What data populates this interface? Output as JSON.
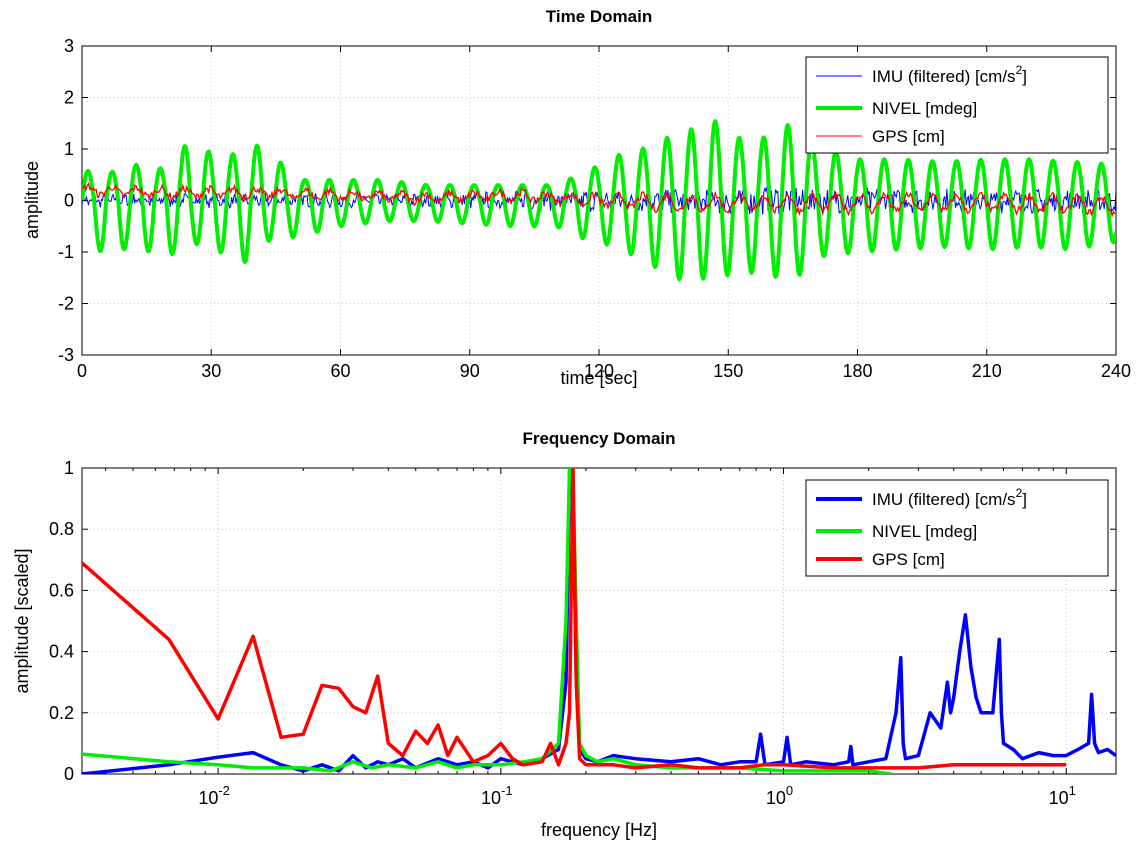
{
  "chart_data": [
    {
      "type": "line",
      "title": "Time Domain",
      "xlabel": "time [sec]",
      "ylabel": "amplitude",
      "xlim": [
        0,
        240
      ],
      "ylim": [
        -3,
        3
      ],
      "xticks": [
        0,
        30,
        60,
        90,
        120,
        150,
        180,
        210,
        240
      ],
      "yticks": [
        -3,
        -2,
        -1,
        0,
        1,
        2,
        3
      ],
      "grid": true,
      "legend_position": "top-right",
      "series": [
        {
          "name": "IMU (filtered) [cm/s2]",
          "color": "#0000ff",
          "style": "thin",
          "x": [
            0,
            30,
            60,
            90,
            100,
            110,
            120,
            130,
            140,
            150,
            160,
            170,
            180,
            190,
            200,
            210,
            220,
            230,
            240
          ],
          "noise_amplitude": [
            0.1,
            0.1,
            0.1,
            0.12,
            0.15,
            0.15,
            0.2,
            0.2,
            0.2,
            0.25,
            0.25,
            0.25,
            0.22,
            0.2,
            0.2,
            0.2,
            0.2,
            0.2,
            0.2
          ]
        },
        {
          "name": "NIVEL [mdeg]",
          "color": "#00ee00",
          "style": "thick",
          "oscillation_period_sec": 5.6,
          "x": [
            0,
            5,
            12,
            20,
            25,
            32,
            38,
            42,
            50,
            60,
            70,
            80,
            90,
            100,
            110,
            118,
            125,
            130,
            135,
            140,
            145,
            150,
            155,
            160,
            165,
            170,
            180,
            190,
            200,
            210,
            220,
            230,
            240
          ],
          "max": [
            0.6,
            0.5,
            0.7,
            0.6,
            1.2,
            0.8,
            1.0,
            1.1,
            0.4,
            0.4,
            0.4,
            0.3,
            0.3,
            0.3,
            0.3,
            0.6,
            0.9,
            1.0,
            1.2,
            1.3,
            1.6,
            1.45,
            1.0,
            1.35,
            1.5,
            1.1,
            0.8,
            0.8,
            0.75,
            0.8,
            0.8,
            0.75,
            0.7
          ],
          "min": [
            -0.6,
            -1.05,
            -0.9,
            -1.1,
            -0.8,
            -1.0,
            -1.2,
            -0.8,
            -0.7,
            -0.5,
            -0.4,
            -0.4,
            -0.45,
            -0.5,
            -0.5,
            -0.8,
            -0.9,
            -1.2,
            -1.35,
            -1.6,
            -1.5,
            -1.45,
            -1.4,
            -1.45,
            -1.6,
            -1.1,
            -1.0,
            -0.95,
            -0.9,
            -0.95,
            -0.9,
            -0.95,
            -0.8
          ]
        },
        {
          "name": "GPS [cm]",
          "color": "#ff0000",
          "style": "thin",
          "x": [
            0,
            20,
            40,
            60,
            80,
            100,
            120,
            140,
            160,
            180,
            200,
            220,
            240
          ],
          "offset": [
            0.2,
            0.15,
            0.15,
            0.1,
            0.05,
            0.1,
            0.0,
            -0.05,
            -0.05,
            -0.05,
            -0.05,
            -0.05,
            -0.1
          ],
          "oscillation_amplitude": [
            0.08,
            0.08,
            0.08,
            0.08,
            0.08,
            0.08,
            0.1,
            0.15,
            0.15,
            0.15,
            0.15,
            0.15,
            0.15
          ]
        }
      ],
      "legend": [
        "IMU (filtered) [cm/s2]",
        "NIVEL [mdeg]",
        "GPS [cm]"
      ]
    },
    {
      "type": "line",
      "title": "Frequency Domain",
      "xlabel": "frequency [Hz]",
      "ylabel": "amplitude [scaled]",
      "xscale": "log",
      "xlim": [
        0.0033,
        15
      ],
      "ylim": [
        0,
        1
      ],
      "xtick_labels": [
        {
          "value": 0.01,
          "base": "10",
          "exp": "-2"
        },
        {
          "value": 0.1,
          "base": "10",
          "exp": "-1"
        },
        {
          "value": 1,
          "base": "10",
          "exp": "0"
        },
        {
          "value": 10,
          "base": "10",
          "exp": "1"
        }
      ],
      "yticks": [
        0,
        0.2,
        0.4,
        0.6,
        0.8,
        1
      ],
      "grid": true,
      "legend_position": "top-right",
      "series": [
        {
          "name": "IMU (filtered) [cm/s2]",
          "color": "#0000ff",
          "x": [
            0.0033,
            0.0067,
            0.01,
            0.0133,
            0.0167,
            0.02,
            0.0233,
            0.0267,
            0.03,
            0.0333,
            0.0367,
            0.04,
            0.045,
            0.05,
            0.06,
            0.07,
            0.08,
            0.09,
            0.1,
            0.12,
            0.14,
            0.16,
            0.17,
            0.175,
            0.18,
            0.185,
            0.19,
            0.2,
            0.22,
            0.25,
            0.3,
            0.4,
            0.5,
            0.6,
            0.7,
            0.8,
            0.83,
            0.86,
            1.0,
            1.03,
            1.06,
            1.2,
            1.5,
            1.7,
            1.73,
            1.76,
            2.0,
            2.3,
            2.5,
            2.6,
            2.65,
            2.7,
            3.0,
            3.3,
            3.6,
            3.8,
            3.9,
            4.0,
            4.2,
            4.4,
            4.6,
            4.8,
            5.0,
            5.5,
            5.8,
            5.9,
            6.0,
            6.5,
            7,
            8,
            9,
            10,
            11,
            12,
            12.3,
            12.6,
            13,
            14,
            15
          ],
          "y": [
            0.0,
            0.03,
            0.055,
            0.07,
            0.03,
            0.01,
            0.03,
            0.01,
            0.06,
            0.02,
            0.04,
            0.03,
            0.05,
            0.02,
            0.05,
            0.03,
            0.04,
            0.02,
            0.05,
            0.03,
            0.05,
            0.08,
            0.3,
            0.98,
            0.95,
            0.3,
            0.08,
            0.05,
            0.04,
            0.06,
            0.05,
            0.04,
            0.05,
            0.03,
            0.04,
            0.04,
            0.13,
            0.03,
            0.04,
            0.12,
            0.03,
            0.04,
            0.03,
            0.04,
            0.09,
            0.03,
            0.04,
            0.05,
            0.2,
            0.38,
            0.1,
            0.05,
            0.06,
            0.2,
            0.15,
            0.3,
            0.2,
            0.25,
            0.4,
            0.52,
            0.35,
            0.25,
            0.2,
            0.2,
            0.44,
            0.2,
            0.1,
            0.08,
            0.05,
            0.07,
            0.06,
            0.06,
            0.08,
            0.1,
            0.26,
            0.1,
            0.07,
            0.08,
            0.06
          ]
        },
        {
          "name": "NIVEL [mdeg]",
          "color": "#00ee00",
          "x": [
            0.0033,
            0.0067,
            0.01,
            0.0133,
            0.02,
            0.025,
            0.03,
            0.035,
            0.04,
            0.05,
            0.06,
            0.07,
            0.08,
            0.1,
            0.12,
            0.14,
            0.16,
            0.17,
            0.175,
            0.18,
            0.185,
            0.19,
            0.2,
            0.22,
            0.25,
            0.3,
            0.4,
            0.5,
            0.7,
            1.0,
            1.5,
            2.0,
            2.4
          ],
          "y": [
            0.065,
            0.04,
            0.03,
            0.02,
            0.02,
            0.01,
            0.04,
            0.02,
            0.03,
            0.02,
            0.04,
            0.02,
            0.03,
            0.03,
            0.04,
            0.05,
            0.1,
            0.5,
            1.0,
            0.98,
            0.5,
            0.1,
            0.06,
            0.04,
            0.05,
            0.03,
            0.02,
            0.02,
            0.02,
            0.01,
            0.01,
            0.01,
            0.0
          ]
        },
        {
          "name": "GPS [cm]",
          "color": "#ff0000",
          "x": [
            0.0033,
            0.0067,
            0.01,
            0.0133,
            0.0167,
            0.02,
            0.0233,
            0.0267,
            0.03,
            0.0333,
            0.0367,
            0.04,
            0.045,
            0.05,
            0.055,
            0.06,
            0.065,
            0.07,
            0.08,
            0.09,
            0.1,
            0.11,
            0.12,
            0.14,
            0.15,
            0.16,
            0.17,
            0.175,
            0.18,
            0.185,
            0.19,
            0.2,
            0.25,
            0.3,
            0.4,
            0.5,
            0.7,
            0.85,
            1.0,
            1.5,
            2.0,
            3.0,
            4.0,
            5.0,
            6.0,
            7.0,
            8.0,
            9.0,
            10.0
          ],
          "y": [
            0.69,
            0.44,
            0.18,
            0.45,
            0.12,
            0.13,
            0.29,
            0.28,
            0.22,
            0.2,
            0.32,
            0.1,
            0.06,
            0.14,
            0.1,
            0.16,
            0.06,
            0.12,
            0.04,
            0.06,
            0.1,
            0.05,
            0.03,
            0.04,
            0.1,
            0.03,
            0.1,
            0.2,
            1.0,
            0.3,
            0.05,
            0.03,
            0.03,
            0.02,
            0.03,
            0.02,
            0.02,
            0.03,
            0.03,
            0.02,
            0.02,
            0.02,
            0.03,
            0.03,
            0.03,
            0.03,
            0.03,
            0.03,
            0.03
          ]
        }
      ],
      "legend": [
        "IMU (filtered) [cm/s2]",
        "NIVEL [mdeg]",
        "GPS [cm]"
      ]
    }
  ]
}
